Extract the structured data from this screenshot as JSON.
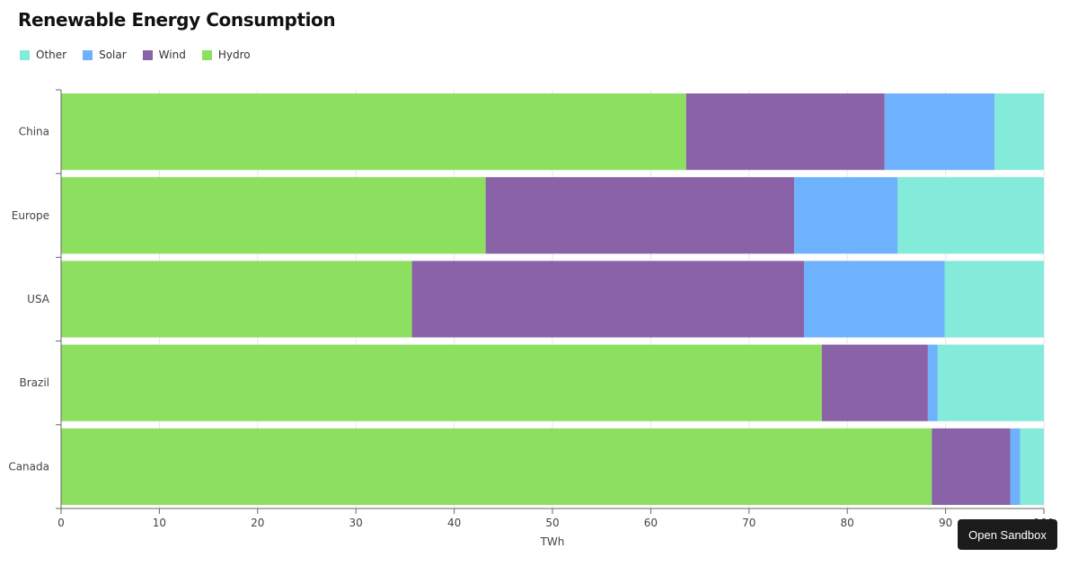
{
  "chart_data": {
    "type": "bar",
    "orientation": "horizontal",
    "stacked": true,
    "title": "Renewable Energy Consumption",
    "xlabel": "TWh",
    "ylabel": "",
    "xlim": [
      0,
      100
    ],
    "xticks": [
      0,
      10,
      20,
      30,
      40,
      50,
      60,
      70,
      80,
      90,
      100
    ],
    "grid": true,
    "legend_position": "top-left",
    "categories": [
      "China",
      "Europe",
      "USA",
      "Brazil",
      "Canada"
    ],
    "legend_order": [
      "Other",
      "Solar",
      "Wind",
      "Hydro"
    ],
    "series": [
      {
        "name": "Hydro",
        "color": "#8ddf5f",
        "values": [
          63.6,
          43.2,
          35.7,
          77.4,
          88.6
        ]
      },
      {
        "name": "Wind",
        "color": "#8a62a8",
        "values": [
          20.2,
          31.4,
          39.9,
          10.8,
          8.0
        ]
      },
      {
        "name": "Solar",
        "color": "#6eb2fd",
        "values": [
          11.2,
          10.5,
          14.3,
          1.0,
          1.0
        ]
      },
      {
        "name": "Other",
        "color": "#84eada",
        "values": [
          5.0,
          14.9,
          10.1,
          10.8,
          2.4
        ]
      }
    ]
  },
  "ui": {
    "sandbox_button_label": "Open Sandbox"
  }
}
